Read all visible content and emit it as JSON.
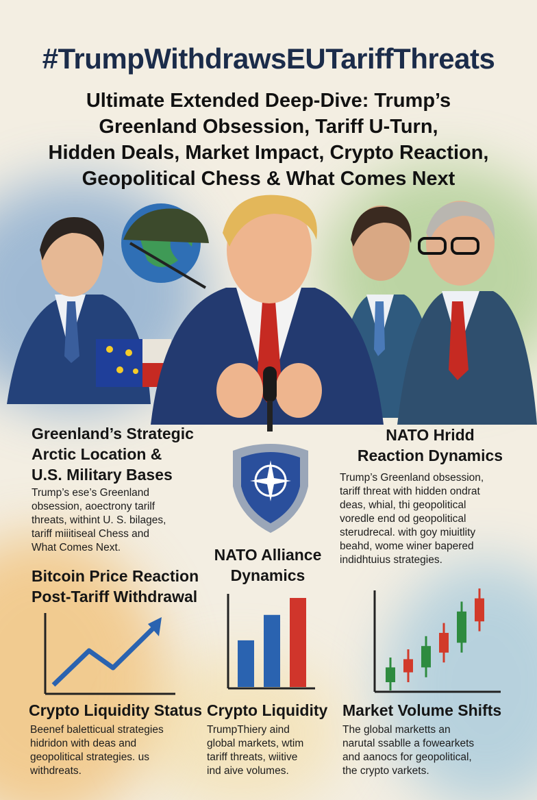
{
  "header": {
    "hashtag": "#TrumpWithdrawsEUTariffThreats",
    "subtitle_lines": [
      "Ultimate Extended Deep-Dive: Trump’s",
      "Greenland Obsession, Tariff U-Turn,",
      "Hidden Deals, Market Impact, Crypto Reaction,",
      "Geopolitical Chess & What Comes Next"
    ]
  },
  "sections": {
    "greenland": {
      "title_lines": [
        "Greenland’s Strategic",
        "Arctic Location &",
        "U.S. Military Bases"
      ],
      "body_lines": [
        "Trump’s ese’s Greenland",
        "obsession, aoectrony tarilf",
        "threats, withint U. S. bilages,",
        "tariff miiitiseal Chess and",
        "What Comes Next."
      ]
    },
    "nato_hridd": {
      "title_lines": [
        "NATO Hridd",
        "Reaction Dynamics"
      ],
      "body_lines": [
        "Trump’s Greenland obsession,",
        "tariff threat with hidden ondrat",
        "deas, whial, thi geopolitical",
        "voredle end od geopolitical",
        "sterudrecal. with goy miuitlity",
        "beahd, wome winer bapered",
        "indidhtuius strategies."
      ]
    },
    "nato_alliance": {
      "title_lines": [
        "NATO Alliance",
        "Dynamics"
      ]
    },
    "bitcoin": {
      "title_lines": [
        "Bitcoin Price Reaction",
        "Post-Tariff Withdrawal"
      ]
    },
    "crypto_status": {
      "title": "Crypto Liquidity Status",
      "body_lines": [
        "Beenef baletticual strategies",
        "hidridon with deas and",
        "geopolitical strategies. us",
        "withdreats."
      ]
    },
    "crypto_liquidity": {
      "title": "Crypto Liquidity",
      "body_lines": [
        "TrumpThiery aind",
        "global markets, wtim",
        "tariff threats, wiitive",
        "ind aive volumes."
      ]
    },
    "market_volume": {
      "title": "Market Volume Shifts",
      "body_lines": [
        "The global marketts an",
        "narutal ssablle a fowearkets",
        "and aanocs for geopolitical,",
        "the crypto varkets."
      ]
    }
  },
  "colors": {
    "navy": "#1b2c4a",
    "suit_blue": "#24427a",
    "tie_red": "#c62a22",
    "bar_blue": "#2a63b0",
    "bar_red": "#d0352b",
    "candle_green": "#2e8b3f",
    "candle_red": "#d23a2a",
    "nato_shield": "#2a4f9c"
  },
  "charts": {
    "bar_values": [
      55,
      85,
      105
    ],
    "candles": [
      {
        "open": 10,
        "close": 28,
        "color": "green"
      },
      {
        "open": 22,
        "close": 38,
        "color": "red"
      },
      {
        "open": 28,
        "close": 54,
        "color": "green"
      },
      {
        "open": 46,
        "close": 70,
        "color": "red"
      },
      {
        "open": 58,
        "close": 96,
        "color": "green"
      },
      {
        "open": 84,
        "close": 112,
        "color": "red"
      }
    ]
  },
  "icons": [
    "globe-icon",
    "eu-flag-icon",
    "microphone-icon",
    "nato-shield-icon",
    "trend-arrow-icon"
  ]
}
